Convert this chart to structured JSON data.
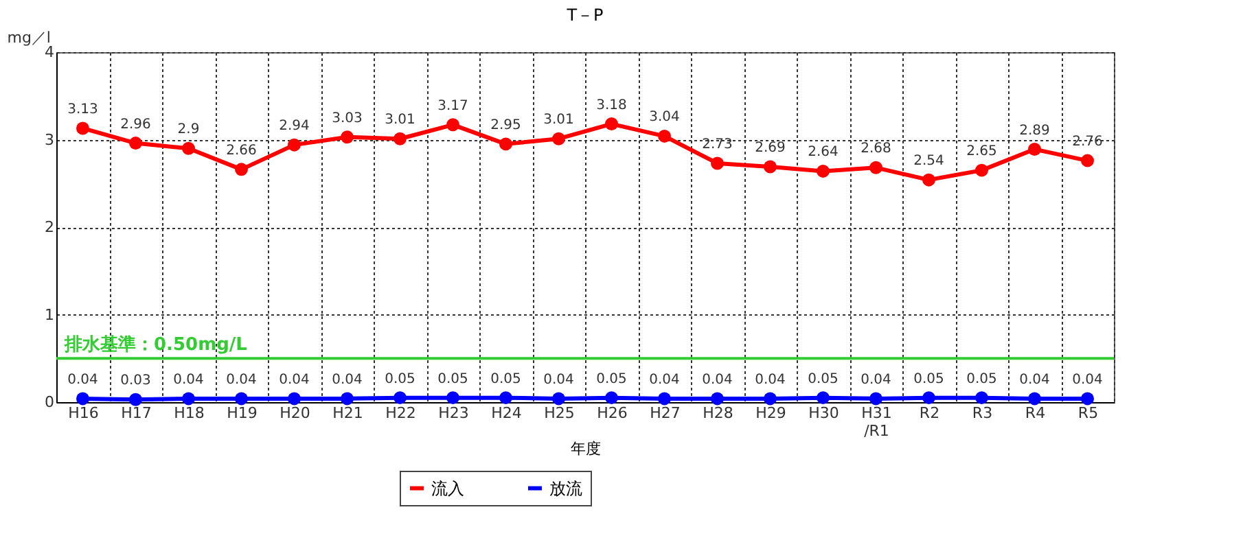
{
  "chart_data": {
    "type": "line",
    "title": "T－P",
    "xlabel": "年度",
    "ylabel": "mg／l",
    "categories": [
      "H16",
      "H17",
      "H18",
      "H19",
      "H20",
      "H21",
      "H22",
      "H23",
      "H24",
      "H25",
      "H26",
      "H27",
      "H28",
      "H29",
      "H30",
      "H31\n/R1",
      "R2",
      "R3",
      "R4",
      "R5"
    ],
    "series": [
      {
        "name": "流入",
        "color": "#ff0000",
        "values": [
          3.13,
          2.96,
          2.9,
          2.66,
          2.94,
          3.03,
          3.01,
          3.17,
          2.95,
          3.01,
          3.18,
          3.04,
          2.73,
          2.69,
          2.64,
          2.68,
          2.54,
          2.65,
          2.89,
          2.76
        ]
      },
      {
        "name": "放流",
        "color": "#0000ff",
        "values": [
          0.04,
          0.03,
          0.04,
          0.04,
          0.04,
          0.04,
          0.05,
          0.05,
          0.05,
          0.04,
          0.05,
          0.04,
          0.04,
          0.04,
          0.05,
          0.04,
          0.05,
          0.05,
          0.04,
          0.04
        ]
      }
    ],
    "ylim": [
      0,
      4
    ],
    "yticks": [
      0,
      1,
      2,
      3,
      4
    ],
    "ref_lines": [
      {
        "axis": "y",
        "value": 0.5,
        "label": "排水基準：0.50mg/L",
        "color": "#33cc33",
        "line_style": "solid"
      }
    ],
    "data_labels": true,
    "grid": true,
    "legend": "bottom",
    "marker": "circle",
    "line_style": "solid"
  }
}
